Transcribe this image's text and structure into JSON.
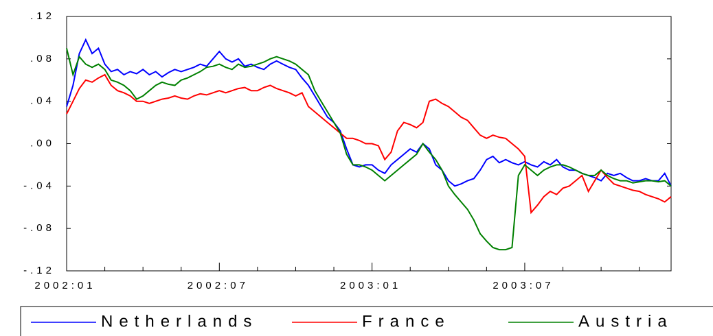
{
  "chart_data": {
    "type": "line",
    "categories": [
      "2002:01",
      null,
      null,
      null,
      null,
      null,
      null,
      null,
      null,
      null,
      null,
      null,
      null,
      null,
      null,
      null,
      null,
      null,
      null,
      null,
      null,
      null,
      null,
      null,
      "2002:07",
      null,
      null,
      null,
      null,
      null,
      null,
      null,
      null,
      null,
      null,
      null,
      null,
      null,
      null,
      null,
      null,
      null,
      null,
      null,
      null,
      null,
      null,
      null,
      "2003:01",
      null,
      null,
      null,
      null,
      null,
      null,
      null,
      null,
      null,
      null,
      null,
      null,
      null,
      null,
      null,
      null,
      null,
      null,
      null,
      null,
      null,
      null,
      null,
      "2003:07",
      null,
      null,
      null,
      null,
      null,
      null,
      null,
      null,
      null,
      null,
      null,
      null,
      null,
      null,
      null,
      null,
      null,
      null,
      null,
      null,
      null,
      null,
      null
    ],
    "series": [
      {
        "name": "Netherlands",
        "color": "#0000ff",
        "values": [
          0.035,
          0.055,
          0.085,
          0.098,
          0.085,
          0.09,
          0.075,
          0.068,
          0.07,
          0.065,
          0.068,
          0.066,
          0.07,
          0.065,
          0.068,
          0.063,
          0.067,
          0.07,
          0.068,
          0.07,
          0.072,
          0.075,
          0.073,
          0.08,
          0.087,
          0.08,
          0.077,
          0.08,
          0.073,
          0.075,
          0.072,
          0.07,
          0.075,
          0.078,
          0.075,
          0.072,
          0.07,
          0.062,
          0.055,
          0.045,
          0.035,
          0.025,
          0.02,
          0.012,
          -0.005,
          -0.02,
          -0.022,
          -0.02,
          -0.02,
          -0.025,
          -0.028,
          -0.02,
          -0.015,
          -0.01,
          -0.005,
          -0.008,
          0.0,
          -0.005,
          -0.02,
          -0.025,
          -0.035,
          -0.04,
          -0.038,
          -0.035,
          -0.033,
          -0.025,
          -0.015,
          -0.012,
          -0.018,
          -0.015,
          -0.018,
          -0.02,
          -0.017,
          -0.02,
          -0.022,
          -0.017,
          -0.02,
          -0.015,
          -0.022,
          -0.025,
          -0.025,
          -0.028,
          -0.03,
          -0.032,
          -0.035,
          -0.028,
          -0.03,
          -0.028,
          -0.032,
          -0.035,
          -0.035,
          -0.033,
          -0.035,
          -0.035,
          -0.028,
          -0.04
        ]
      },
      {
        "name": "France",
        "color": "#ff0000",
        "values": [
          0.028,
          0.04,
          0.052,
          0.06,
          0.058,
          0.062,
          0.065,
          0.055,
          0.05,
          0.048,
          0.045,
          0.04,
          0.04,
          0.038,
          0.04,
          0.042,
          0.043,
          0.045,
          0.043,
          0.042,
          0.045,
          0.047,
          0.046,
          0.048,
          0.05,
          0.048,
          0.05,
          0.052,
          0.053,
          0.05,
          0.05,
          0.053,
          0.055,
          0.052,
          0.05,
          0.048,
          0.045,
          0.048,
          0.035,
          0.03,
          0.025,
          0.02,
          0.015,
          0.01,
          0.005,
          0.005,
          0.003,
          0.0,
          0.0,
          -0.002,
          -0.015,
          -0.008,
          0.012,
          0.02,
          0.018,
          0.015,
          0.02,
          0.04,
          0.042,
          0.038,
          0.035,
          0.03,
          0.025,
          0.022,
          0.015,
          0.008,
          0.005,
          0.008,
          0.006,
          0.005,
          0.0,
          -0.005,
          -0.012,
          -0.065,
          -0.058,
          -0.05,
          -0.045,
          -0.048,
          -0.042,
          -0.04,
          -0.035,
          -0.03,
          -0.045,
          -0.035,
          -0.025,
          -0.032,
          -0.038,
          -0.04,
          -0.042,
          -0.044,
          -0.045,
          -0.048,
          -0.05,
          -0.052,
          -0.055,
          -0.05
        ]
      },
      {
        "name": "Austria",
        "color": "#008000",
        "values": [
          0.09,
          0.065,
          0.082,
          0.075,
          0.072,
          0.075,
          0.07,
          0.06,
          0.058,
          0.055,
          0.05,
          0.042,
          0.045,
          0.05,
          0.055,
          0.058,
          0.056,
          0.055,
          0.06,
          0.062,
          0.065,
          0.068,
          0.072,
          0.073,
          0.075,
          0.072,
          0.07,
          0.075,
          0.072,
          0.073,
          0.075,
          0.077,
          0.08,
          0.082,
          0.08,
          0.078,
          0.075,
          0.07,
          0.065,
          0.05,
          0.04,
          0.03,
          0.02,
          0.01,
          -0.01,
          -0.02,
          -0.02,
          -0.022,
          -0.025,
          -0.03,
          -0.035,
          -0.03,
          -0.025,
          -0.02,
          -0.015,
          -0.01,
          0.0,
          -0.008,
          -0.015,
          -0.025,
          -0.04,
          -0.048,
          -0.055,
          -0.062,
          -0.072,
          -0.085,
          -0.092,
          -0.098,
          -0.1,
          -0.1,
          -0.098,
          -0.03,
          -0.02,
          -0.025,
          -0.03,
          -0.025,
          -0.022,
          -0.02,
          -0.02,
          -0.022,
          -0.025,
          -0.028,
          -0.03,
          -0.03,
          -0.025,
          -0.03,
          -0.033,
          -0.035,
          -0.035,
          -0.037,
          -0.036,
          -0.035,
          -0.035,
          -0.036,
          -0.035,
          -0.04
        ]
      }
    ],
    "ylim": [
      -0.12,
      0.12
    ],
    "yticks": [
      {
        "value": -0.12,
        "label": "-.12"
      },
      {
        "value": -0.08,
        "label": "-.08"
      },
      {
        "value": -0.04,
        "label": "-.04"
      },
      {
        "value": 0,
        "label": ".00"
      },
      {
        "value": 0.04,
        "label": ".04"
      },
      {
        "value": 0.08,
        "label": ".08"
      },
      {
        "value": 0.12,
        "label": ".12"
      }
    ],
    "grid": false,
    "legend": "bottom"
  }
}
